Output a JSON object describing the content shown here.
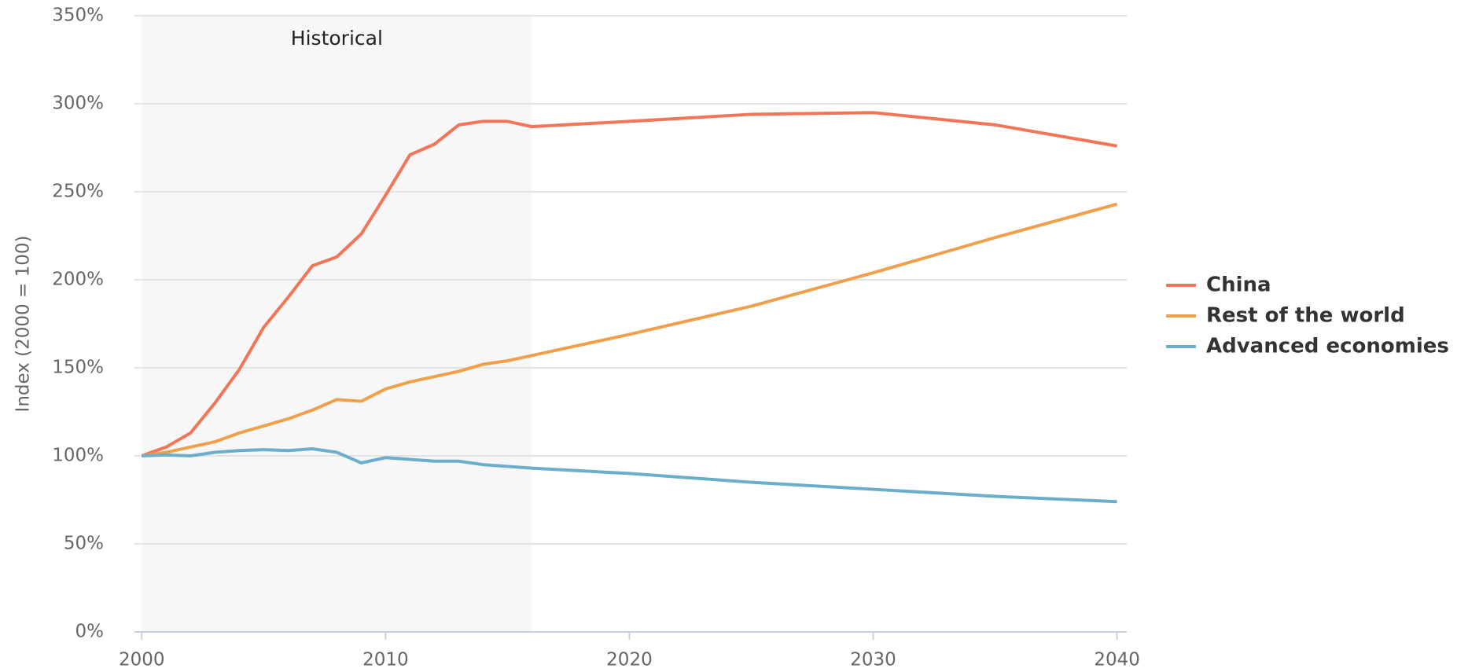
{
  "chart_data": {
    "type": "line",
    "ylabel": "Index (2000 = 100)",
    "x": [
      2000,
      2001,
      2002,
      2003,
      2004,
      2005,
      2006,
      2007,
      2008,
      2009,
      2010,
      2011,
      2012,
      2013,
      2014,
      2015,
      2016,
      2020,
      2025,
      2030,
      2035,
      2040
    ],
    "series": [
      {
        "name": "China",
        "color": "#f47458",
        "values": [
          100,
          105,
          113,
          130,
          149,
          173,
          190,
          208,
          213,
          226,
          248,
          271,
          277,
          288,
          290,
          290,
          287,
          290,
          294,
          295,
          288,
          276
        ]
      },
      {
        "name": "Rest of the world",
        "color": "#f0a04b",
        "values": [
          100,
          102,
          105,
          108,
          113,
          117,
          121,
          126,
          132,
          131,
          138,
          142,
          145,
          148,
          152,
          154,
          157,
          169,
          185,
          204,
          224,
          243
        ]
      },
      {
        "name": "Advanced economies",
        "color": "#6aaecb",
        "values": [
          100,
          100.5,
          100,
          102,
          103,
          103.5,
          103,
          104,
          102,
          96,
          99,
          98,
          97,
          97,
          95,
          94,
          93,
          90,
          85,
          81,
          77,
          74
        ]
      }
    ],
    "shade": {
      "x": [
        2000,
        2016
      ],
      "label": "Historical"
    },
    "xlim": [
      1999.7,
      2040.4
    ],
    "xticks": [
      2000,
      2010,
      2020,
      2030,
      2040
    ],
    "ylim": [
      0,
      350
    ],
    "yticks": [
      {
        "value": 0,
        "label": "0%"
      },
      {
        "value": 50,
        "label": "50%"
      },
      {
        "value": 100,
        "label": "100%"
      },
      {
        "value": 150,
        "label": "150%"
      },
      {
        "value": 200,
        "label": "200%"
      },
      {
        "value": 250,
        "label": "250%"
      },
      {
        "value": 300,
        "label": "300%"
      },
      {
        "value": 350,
        "label": "350%"
      }
    ],
    "grid": true,
    "legend": "right"
  }
}
